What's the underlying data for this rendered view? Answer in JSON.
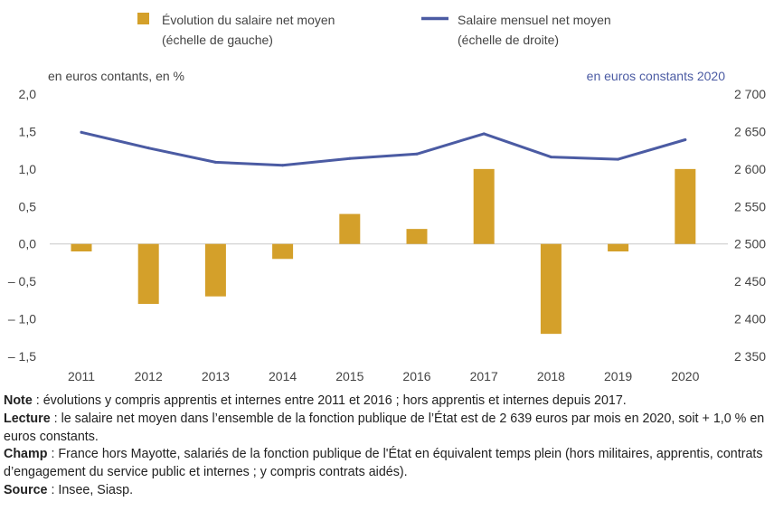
{
  "chart_data": {
    "type": "bar+line",
    "legend": {
      "placement": "top",
      "bar_entry": [
        "Évolution du salaire net moyen",
        "(échelle de gauche)"
      ],
      "line_entry": [
        "Salaire mensuel net moyen",
        "(échelle de droite)"
      ]
    },
    "left_axis": {
      "unit_label": "en euros contants, en %",
      "ylim": [
        -1.5,
        2.0
      ],
      "ticks": [
        "2,0",
        "1,5",
        "1,0",
        "0,5",
        "0,0",
        "– 0,5",
        "– 1,0",
        "– 1,5"
      ],
      "tick_values": [
        2.0,
        1.5,
        1.0,
        0.5,
        0.0,
        -0.5,
        -1.0,
        -1.5
      ]
    },
    "right_axis": {
      "unit_label": "en euros constants 2020",
      "ylim": [
        2350,
        2700
      ],
      "ticks": [
        "2 700",
        "2 650",
        "2 600",
        "2 550",
        "2 500",
        "2 450",
        "2 400",
        "2 350"
      ],
      "tick_values": [
        2700,
        2650,
        2600,
        2550,
        2500,
        2450,
        2400,
        2350
      ]
    },
    "categories": [
      "2011",
      "2012",
      "2013",
      "2014",
      "2015",
      "2016",
      "2017",
      "2018",
      "2019",
      "2020"
    ],
    "series": [
      {
        "name": "Évolution du salaire net moyen",
        "type": "bar",
        "axis": "left",
        "values": [
          -0.1,
          -0.8,
          -0.7,
          -0.2,
          0.4,
          0.2,
          1.0,
          -1.2,
          -0.1,
          1.0
        ]
      },
      {
        "name": "Salaire mensuel net moyen",
        "type": "line",
        "axis": "right",
        "values": [
          2649,
          2628,
          2609,
          2605,
          2614,
          2620,
          2647,
          2616,
          2613,
          2639
        ]
      }
    ],
    "grid": false
  },
  "colors": {
    "bar": "#d4a02a",
    "line": "#4b5ba3",
    "right_axis_text": "#4b5ba3",
    "text": "#444444",
    "axis_line": "#c8c8c8"
  },
  "notes": {
    "note_label": "Note",
    "note_text": " : évolutions y compris apprentis et internes entre 2011 et 2016 ; hors apprentis et internes depuis 2017.",
    "lecture_label": "Lecture",
    "lecture_text": " : le salaire net moyen dans l’ensemble de la fonction publique de l’État est de 2 639 euros par mois en 2020, soit + 1,0 % en euros constants.",
    "champ_label": "Champ",
    "champ_text": " : France hors Mayotte, salariés de la fonction publique de l'État en équivalent temps plein (hors militaires, apprentis, contrats d’engagement du service public et internes ; y compris contrats aidés).",
    "source_label": "Source",
    "source_text": " : Insee, Siasp."
  }
}
